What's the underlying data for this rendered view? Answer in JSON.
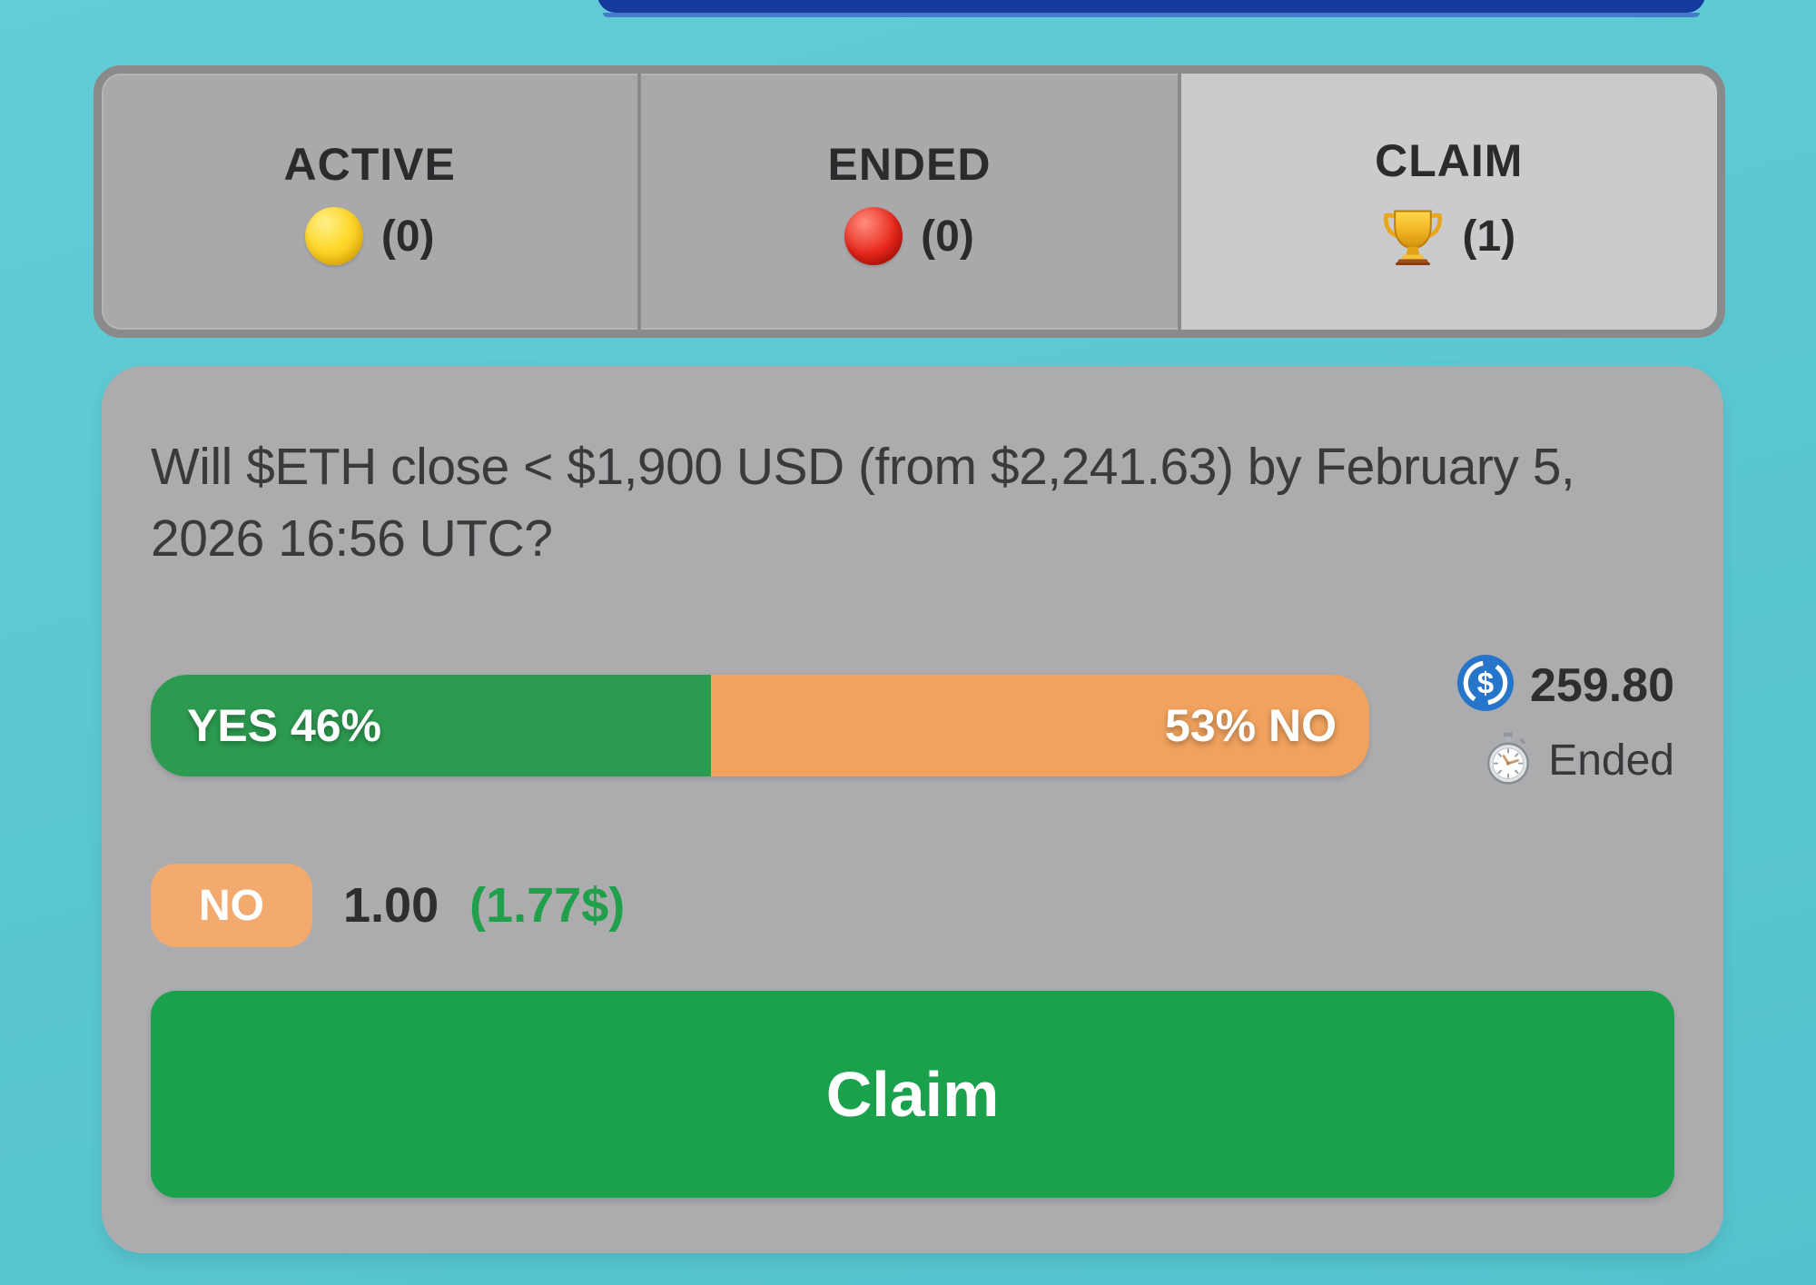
{
  "colors": {
    "background_teal": "#5bc8d1",
    "top_panel_navy": "#16399e",
    "tab_bar_gray": "#a9a9ac",
    "tab_border_gray": "#8a8a8d",
    "tab_selected_gray": "#cbcbce",
    "card_gray": "#acacaf",
    "yes_green": "#2c9b50",
    "no_orange": "#f0a25e",
    "badge_orange": "#f3aa6e",
    "claim_green": "#1aa14c",
    "value_green": "#21a04b",
    "usdc_blue": "#2775ca"
  },
  "tabs": {
    "items": [
      {
        "id": "active",
        "label": "ACTIVE",
        "count": "(0)",
        "icon": "yellow-circle-icon",
        "selected": false
      },
      {
        "id": "ended",
        "label": "ENDED",
        "count": "(0)",
        "icon": "red-circle-icon",
        "selected": false
      },
      {
        "id": "claim",
        "label": "CLAIM",
        "count": "(1)",
        "icon": "trophy-icon",
        "selected": true
      }
    ]
  },
  "market_card": {
    "question": "Will $ETH close < $1,900 USD (from $2,241.63) by February 5, 2026 16:56 UTC?",
    "outcome_bar": {
      "yes_label": "YES 46%",
      "no_label": "53% NO",
      "yes_pct": 46,
      "no_pct": 53
    },
    "stake": {
      "amount": "259.80",
      "currency_icon": "usdc-icon"
    },
    "status": {
      "label": "Ended",
      "icon": "stopwatch-icon"
    },
    "position": {
      "side": "NO",
      "price": "1.00",
      "value": "(1.77$)"
    },
    "claim_button": {
      "label": "Claim"
    }
  }
}
